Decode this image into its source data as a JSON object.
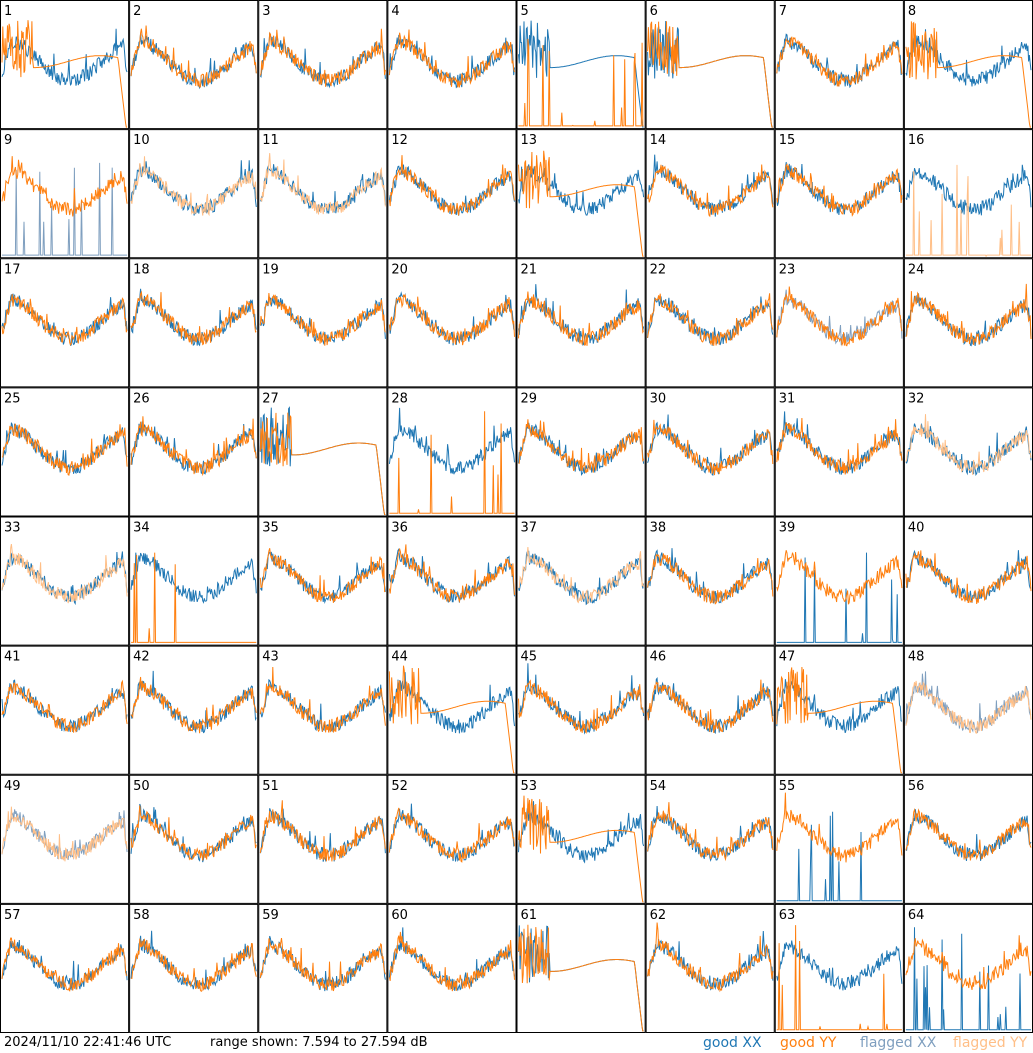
{
  "chart_data": {
    "type": "line",
    "x": "frequency channel",
    "y_range_db": [
      7.594,
      27.594
    ],
    "grid_layout": "8x8",
    "tiles": [
      "1",
      "2",
      "3",
      "4",
      "5",
      "6",
      "7",
      "8",
      "9",
      "10",
      "11",
      "12",
      "13",
      "14",
      "15",
      "16",
      "17",
      "18",
      "19",
      "20",
      "21",
      "22",
      "23",
      "24",
      "25",
      "26",
      "27",
      "28",
      "29",
      "30",
      "31",
      "32",
      "33",
      "34",
      "35",
      "36",
      "37",
      "38",
      "39",
      "40",
      "41",
      "42",
      "43",
      "44",
      "45",
      "46",
      "47",
      "48",
      "49",
      "50",
      "51",
      "52",
      "53",
      "54",
      "55",
      "56",
      "57",
      "58",
      "59",
      "60",
      "61",
      "62",
      "63",
      "64"
    ],
    "series": [
      {
        "name": "good XX",
        "color": "#1f77b4"
      },
      {
        "name": "good YY",
        "color": "#ff7f0e"
      },
      {
        "name": "flagged XX",
        "color": "#7f9fbf"
      },
      {
        "name": "flagged YY",
        "color": "#ffbf87"
      }
    ],
    "tile_status": {
      "flagged_xx": [
        "9",
        "23",
        "49"
      ],
      "flagged_yy": [
        "10",
        "11",
        "16",
        "32",
        "33",
        "37",
        "49"
      ],
      "flagged_both": [
        "48"
      ]
    },
    "anomalies": {
      "yy_dropout": [
        "1",
        "6",
        "8",
        "13",
        "27",
        "44",
        "47",
        "53",
        "61"
      ],
      "xx_dropout": [
        "5",
        "6",
        "27",
        "61"
      ],
      "yy_spiky_near_zero": [
        "5",
        "16",
        "28",
        "34",
        "63"
      ],
      "xx_spiky_near_zero": [
        "9",
        "39",
        "55",
        "64"
      ]
    }
  },
  "footer": {
    "timestamp": "2024/11/10 22:41:46 UTC",
    "range_text": "range shown: 7.594 to 27.594 dB",
    "legend": {
      "good_xx": "good XX",
      "good_yy": "good YY",
      "flagged_xx": "flagged XX",
      "flagged_yy": "flagged YY"
    }
  }
}
